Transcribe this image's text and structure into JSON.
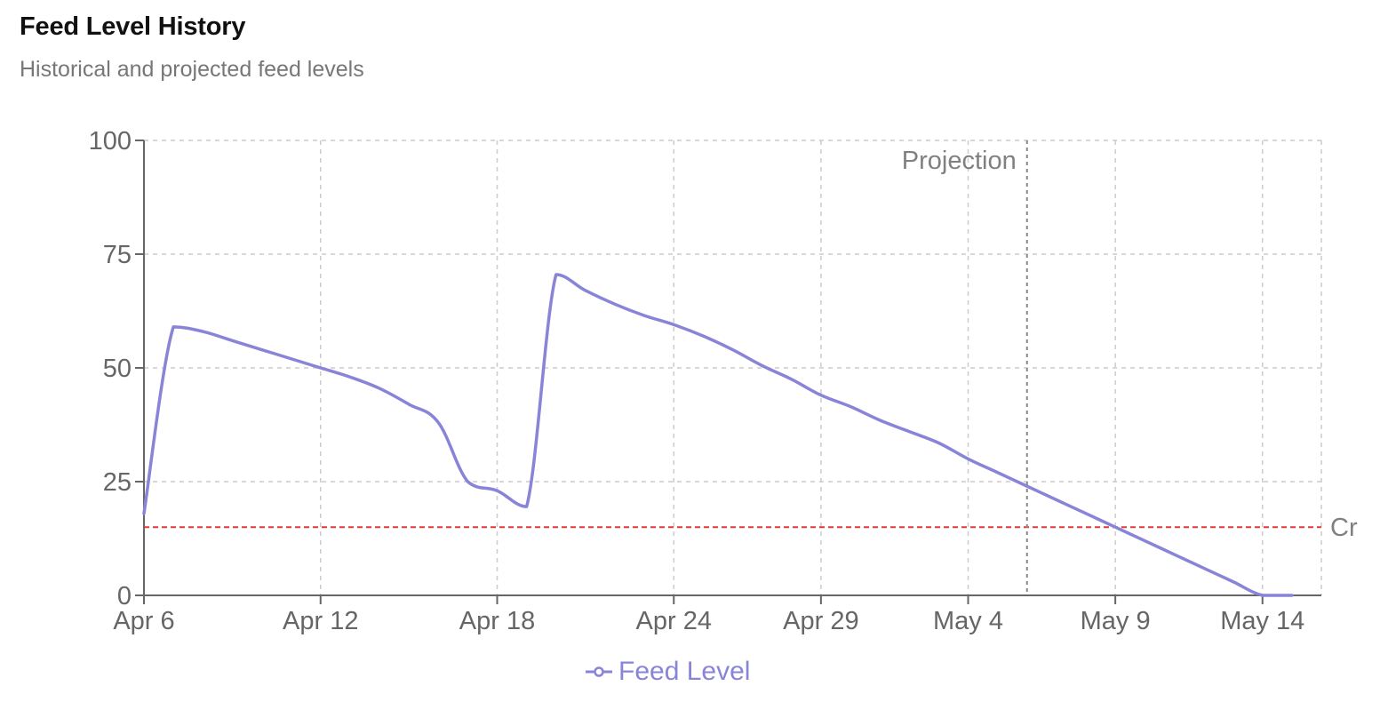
{
  "title": "Feed Level History",
  "subtitle": "Historical and projected feed levels",
  "chart_data": {
    "type": "line",
    "title": "Feed Level History",
    "subtitle": "Historical and projected feed levels",
    "xlabel": "",
    "ylabel": "",
    "ylim": [
      0,
      100
    ],
    "xlim": [
      "2024-04-06",
      "2024-05-16"
    ],
    "y_ticks": [
      0,
      25,
      50,
      75,
      100
    ],
    "x_ticks": [
      {
        "date": "2024-04-06",
        "label": "Apr 6"
      },
      {
        "date": "2024-04-12",
        "label": "Apr 12"
      },
      {
        "date": "2024-04-18",
        "label": "Apr 18"
      },
      {
        "date": "2024-04-24",
        "label": "Apr 24"
      },
      {
        "date": "2024-04-29",
        "label": "Apr 29"
      },
      {
        "date": "2024-05-04",
        "label": "May 4"
      },
      {
        "date": "2024-05-09",
        "label": "May 9"
      },
      {
        "date": "2024-05-14",
        "label": "May 14"
      }
    ],
    "grid": true,
    "legend_position": "bottom-center",
    "series": [
      {
        "name": "Feed Level",
        "color": "#8884d8",
        "points": [
          {
            "x": "2024-04-06",
            "y": 18
          },
          {
            "x": "2024-04-07",
            "y": 59
          },
          {
            "x": "2024-04-08",
            "y": 58
          },
          {
            "x": "2024-04-09",
            "y": 56
          },
          {
            "x": "2024-04-10",
            "y": 54
          },
          {
            "x": "2024-04-11",
            "y": 52
          },
          {
            "x": "2024-04-12",
            "y": 50
          },
          {
            "x": "2024-04-13",
            "y": 48
          },
          {
            "x": "2024-04-14",
            "y": 45.5
          },
          {
            "x": "2024-04-15",
            "y": 42
          },
          {
            "x": "2024-04-16",
            "y": 38
          },
          {
            "x": "2024-04-17",
            "y": 25
          },
          {
            "x": "2024-04-18",
            "y": 23
          },
          {
            "x": "2024-04-19",
            "y": 19.5
          },
          {
            "x": "2024-04-20",
            "y": 70.5
          },
          {
            "x": "2024-04-21",
            "y": 67
          },
          {
            "x": "2024-04-22",
            "y": 64
          },
          {
            "x": "2024-04-23",
            "y": 61.5
          },
          {
            "x": "2024-04-24",
            "y": 59.5
          },
          {
            "x": "2024-04-25",
            "y": 57
          },
          {
            "x": "2024-04-26",
            "y": 54
          },
          {
            "x": "2024-04-27",
            "y": 50.5
          },
          {
            "x": "2024-04-28",
            "y": 47.5
          },
          {
            "x": "2024-04-29",
            "y": 44
          },
          {
            "x": "2024-04-30",
            "y": 41.5
          },
          {
            "x": "2024-05-01",
            "y": 38.5
          },
          {
            "x": "2024-05-02",
            "y": 36
          },
          {
            "x": "2024-05-03",
            "y": 33.5
          },
          {
            "x": "2024-05-04",
            "y": 30
          },
          {
            "x": "2024-05-05",
            "y": 27
          },
          {
            "x": "2024-05-06",
            "y": 24
          },
          {
            "x": "2024-05-07",
            "y": 21
          },
          {
            "x": "2024-05-08",
            "y": 18
          },
          {
            "x": "2024-05-09",
            "y": 15
          },
          {
            "x": "2024-05-10",
            "y": 12
          },
          {
            "x": "2024-05-11",
            "y": 9
          },
          {
            "x": "2024-05-12",
            "y": 6
          },
          {
            "x": "2024-05-13",
            "y": 3
          },
          {
            "x": "2024-05-14",
            "y": 0
          },
          {
            "x": "2024-05-15",
            "y": 0
          }
        ]
      }
    ],
    "reference_lines": [
      {
        "axis": "y",
        "value": 15,
        "label": "Cr",
        "color": "#e03a3a",
        "style": "dashed"
      },
      {
        "axis": "x",
        "value": "2024-05-06",
        "label": "Projection",
        "color": "#888888",
        "style": "dashed"
      }
    ]
  }
}
